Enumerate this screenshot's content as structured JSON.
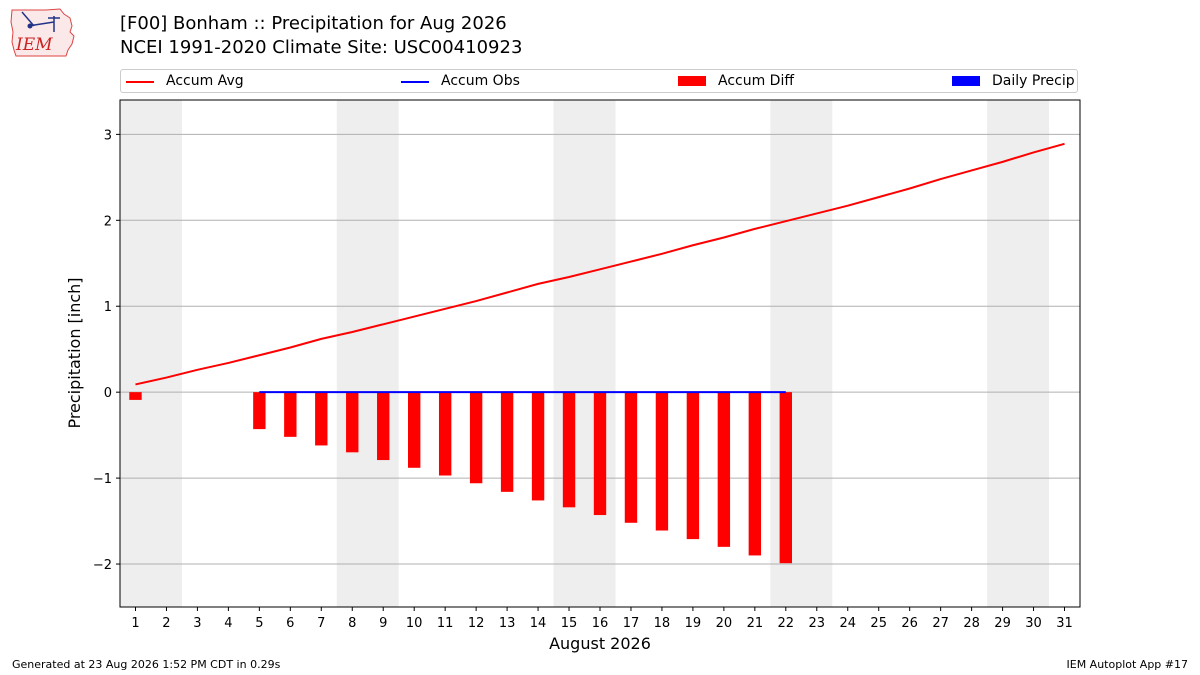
{
  "header": {
    "title_line1": "[F00] Bonham :: Precipitation for Aug 2026",
    "title_line2": "NCEI 1991-2020 Climate Site: USC00410923"
  },
  "logo": {
    "text": "IEM",
    "icon": "iem-logo-icon"
  },
  "legend": [
    {
      "label": "Accum Avg",
      "kind": "line",
      "color": "#ff0000"
    },
    {
      "label": "Accum Obs",
      "kind": "line",
      "color": "#0000ff"
    },
    {
      "label": "Accum Diff",
      "kind": "patch",
      "color": "#ff0000"
    },
    {
      "label": "Daily Precip",
      "kind": "patch",
      "color": "#0000ff"
    }
  ],
  "chart_data": {
    "type": "bar",
    "xlabel": "August 2026",
    "ylabel": "Precipitation [inch]",
    "x": [
      1,
      2,
      3,
      4,
      5,
      6,
      7,
      8,
      9,
      10,
      11,
      12,
      13,
      14,
      15,
      16,
      17,
      18,
      19,
      20,
      21,
      22,
      23,
      24,
      25,
      26,
      27,
      28,
      29,
      30,
      31
    ],
    "xlim": [
      0.5,
      31.5
    ],
    "ylim": [
      -2.5,
      3.4
    ],
    "yticks": [
      -2,
      -1,
      0,
      1,
      2,
      3
    ],
    "ytick_labels": [
      "−2",
      "−1",
      "0",
      "1",
      "2",
      "3"
    ],
    "grid": "horizontal",
    "weekend_shading": [
      [
        0.5,
        2.5
      ],
      [
        7.5,
        9.5
      ],
      [
        14.5,
        16.5
      ],
      [
        21.5,
        23.5
      ],
      [
        28.5,
        30.5
      ]
    ],
    "series": [
      {
        "name": "Accum Avg",
        "type": "line",
        "color": "#ff0000",
        "x": [
          1,
          2,
          3,
          4,
          5,
          6,
          7,
          8,
          9,
          10,
          11,
          12,
          13,
          14,
          15,
          16,
          17,
          18,
          19,
          20,
          21,
          22,
          23,
          24,
          25,
          26,
          27,
          28,
          29,
          30,
          31
        ],
        "values": [
          0.09,
          0.17,
          0.26,
          0.34,
          0.43,
          0.52,
          0.62,
          0.7,
          0.79,
          0.88,
          0.97,
          1.06,
          1.16,
          1.26,
          1.34,
          1.43,
          1.52,
          1.61,
          1.71,
          1.8,
          1.9,
          1.99,
          2.08,
          2.17,
          2.27,
          2.37,
          2.48,
          2.58,
          2.68,
          2.79,
          2.89
        ]
      },
      {
        "name": "Accum Obs",
        "type": "line",
        "color": "#0000ff",
        "x": [
          5,
          6,
          7,
          8,
          9,
          10,
          11,
          12,
          13,
          14,
          15,
          16,
          17,
          18,
          19,
          20,
          21,
          22
        ],
        "values": [
          0,
          0,
          0,
          0,
          0,
          0,
          0,
          0,
          0,
          0,
          0,
          0,
          0,
          0,
          0,
          0,
          0,
          0
        ]
      },
      {
        "name": "Accum Diff",
        "type": "bar",
        "color": "#ff0000",
        "x": [
          1,
          5,
          6,
          7,
          8,
          9,
          10,
          11,
          12,
          13,
          14,
          15,
          16,
          17,
          18,
          19,
          20,
          21,
          22
        ],
        "values": [
          -0.09,
          -0.43,
          -0.52,
          -0.62,
          -0.7,
          -0.79,
          -0.88,
          -0.97,
          -1.06,
          -1.16,
          -1.26,
          -1.34,
          -1.43,
          -1.52,
          -1.61,
          -1.71,
          -1.8,
          -1.9,
          -1.99
        ]
      },
      {
        "name": "Daily Precip",
        "type": "bar",
        "color": "#0000ff",
        "x": [],
        "values": []
      }
    ]
  },
  "footer": {
    "generated": "Generated at 23 Aug 2026 1:52 PM CDT in 0.29s",
    "app": "IEM Autoplot App #17"
  }
}
